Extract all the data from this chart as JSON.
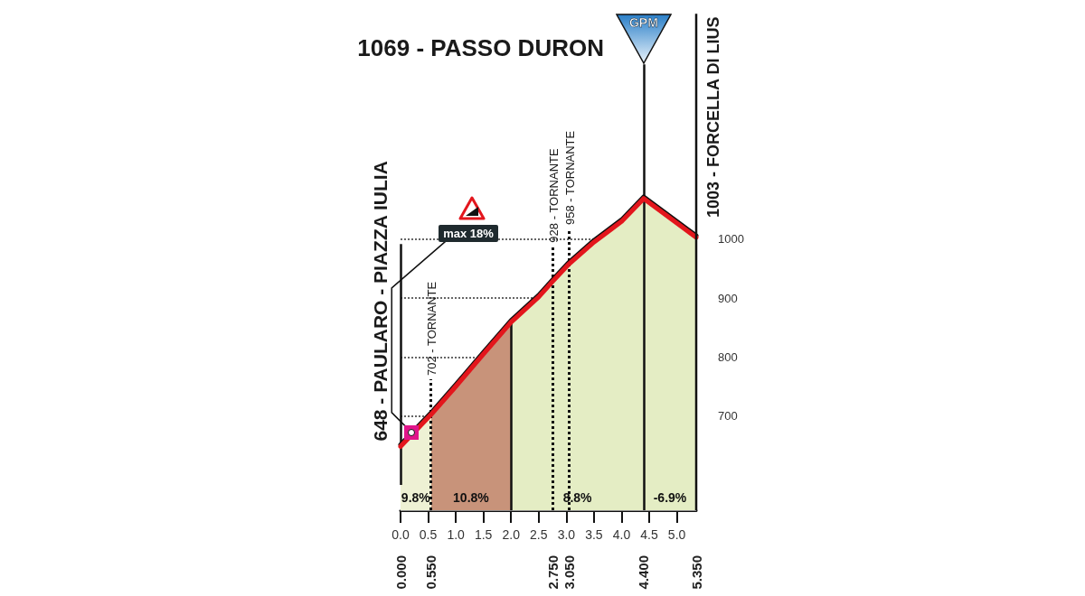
{
  "chart_data": {
    "type": "area",
    "series": [
      {
        "color": "#e3161d",
        "x": [
          0,
          0.55,
          1.0,
          1.5,
          2.0,
          2.5,
          2.75,
          3.05,
          3.5,
          4.0,
          4.4,
          5.35
        ],
        "values": [
          648,
          702,
          750,
          805,
          859,
          902,
          928,
          958,
          995,
          1030,
          1069,
          1003
        ]
      }
    ],
    "xlim": [
      0,
      5.35
    ],
    "xticks": [
      {
        "value": 0,
        "label": "0.0"
      },
      {
        "value": 0.5,
        "label": "0.5"
      },
      {
        "value": 1,
        "label": "1.0"
      },
      {
        "value": 1.5,
        "label": "1.5"
      },
      {
        "value": 2,
        "label": "2.0"
      },
      {
        "value": 2.5,
        "label": "2.5"
      },
      {
        "value": 3,
        "label": "3.0"
      },
      {
        "value": 3.5,
        "label": "3.5"
      },
      {
        "value": 4,
        "label": "4.0"
      },
      {
        "value": 4.5,
        "label": "4.5"
      },
      {
        "value": 5,
        "label": "5.0"
      }
    ],
    "x2lim": [
      0,
      5.35
    ],
    "x2ticks": [
      {
        "value": 0,
        "label": "0.000"
      },
      {
        "value": 0.55,
        "label": "0.550"
      },
      {
        "value": 2.75,
        "label": "2.750"
      },
      {
        "value": 3.05,
        "label": "3.050"
      },
      {
        "value": 4.4,
        "label": "4.400"
      },
      {
        "value": 5.35,
        "label": "5.350"
      }
    ],
    "ylim": [
      540,
      1400
    ],
    "yticks": [
      700,
      800,
      900,
      1000
    ],
    "grid": "y",
    "bands": [
      {
        "axis": "x",
        "from": 0,
        "to": 0.55,
        "label": "9.8%"
      },
      {
        "axis": "x",
        "from": 0.55,
        "to": 2.0,
        "label": "10.8%"
      },
      {
        "axis": "x",
        "from": 2.0,
        "to": 4.4,
        "label": "8.8%"
      },
      {
        "axis": "x",
        "from": 4.4,
        "to": 5.35,
        "label": "-6.9%"
      }
    ],
    "ref_lines": [
      {
        "axis": "x",
        "value": 0,
        "label": "648 - PAULARO - PIAZZA IULIA",
        "line_style": "solid"
      },
      {
        "axis": "x",
        "value": 0.55,
        "label": "702 - TORNANTE",
        "line_style": "dotted"
      },
      {
        "axis": "x",
        "value": 2.0,
        "line_style": "solid"
      },
      {
        "axis": "x",
        "value": 2.75,
        "label": "928 - TORNANTE",
        "line_style": "dotted"
      },
      {
        "axis": "x",
        "value": 3.05,
        "label": "958 - TORNANTE",
        "line_style": "dotted"
      },
      {
        "axis": "x",
        "value": 4.4,
        "label": "1069 - PASSO DURON",
        "line_style": "solid"
      }
    ],
    "annotations": [
      "GPM",
      {
        "text": "max 18%",
        "x": 0.2,
        "y": 672
      },
      {
        "text": "1003 - FORCELLA DI LIUS",
        "x": 5.35,
        "y": 1003
      }
    ]
  }
}
